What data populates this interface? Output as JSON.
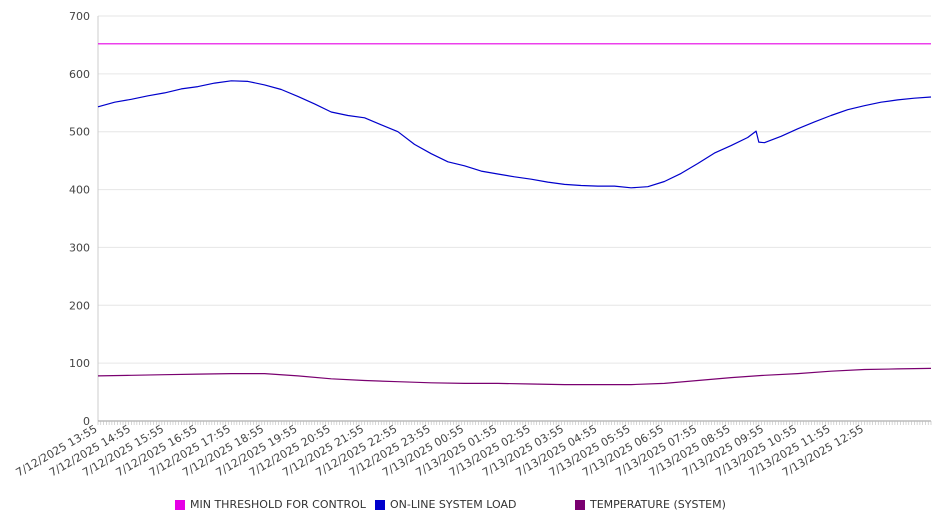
{
  "chart_data": {
    "type": "line",
    "title": "",
    "xlabel": "",
    "ylabel": "",
    "ylim": [
      0,
      700
    ],
    "y_ticks": [
      0,
      100,
      200,
      300,
      400,
      500,
      600,
      700
    ],
    "grid": true,
    "legend_position": "bottom",
    "x_start": "7/12/2025 13:55",
    "x_end": "7/13/2025 14:55",
    "x_tick_labels": [
      "7/12/2025 13:55",
      "7/12/2025 14:55",
      "7/12/2025 15:55",
      "7/12/2025 16:55",
      "7/12/2025 17:55",
      "7/12/2025 18:55",
      "7/12/2025 19:55",
      "7/12/2025 20:55",
      "7/12/2025 21:55",
      "7/12/2025 22:55",
      "7/12/2025 23:55",
      "7/13/2025 00:55",
      "7/13/2025 01:55",
      "7/13/2025 02:55",
      "7/13/2025 03:55",
      "7/13/2025 04:55",
      "7/13/2025 05:55",
      "7/13/2025 06:55",
      "7/13/2025 07:55",
      "7/13/2025 08:55",
      "7/13/2025 09:55",
      "7/13/2025 10:55",
      "7/13/2025 11:55",
      "7/13/2025 12:55"
    ],
    "series": [
      {
        "name": "MIN THRESHOLD FOR CONTROL",
        "color": "#e600e6",
        "points": [
          [
            "7/12/2025 13:55",
            652
          ],
          [
            "7/13/2025 14:55",
            652
          ]
        ]
      },
      {
        "name": "ON-LINE SYSTEM LOAD",
        "color": "#0000cc",
        "points": [
          [
            "7/12/2025 13:55",
            543
          ],
          [
            "7/12/2025 14:25",
            551
          ],
          [
            "7/12/2025 14:55",
            556
          ],
          [
            "7/12/2025 15:25",
            562
          ],
          [
            "7/12/2025 15:55",
            567
          ],
          [
            "7/12/2025 16:25",
            574
          ],
          [
            "7/12/2025 16:55",
            578
          ],
          [
            "7/12/2025 17:25",
            584
          ],
          [
            "7/12/2025 17:55",
            588
          ],
          [
            "7/12/2025 18:25",
            587
          ],
          [
            "7/12/2025 18:55",
            581
          ],
          [
            "7/12/2025 19:25",
            573
          ],
          [
            "7/12/2025 19:55",
            561
          ],
          [
            "7/12/2025 20:25",
            548
          ],
          [
            "7/12/2025 20:55",
            534
          ],
          [
            "7/12/2025 21:25",
            528
          ],
          [
            "7/12/2025 21:55",
            524
          ],
          [
            "7/12/2025 22:25",
            512
          ],
          [
            "7/12/2025 22:55",
            500
          ],
          [
            "7/12/2025 23:25",
            478
          ],
          [
            "7/12/2025 23:55",
            462
          ],
          [
            "7/13/2025 00:25",
            448
          ],
          [
            "7/13/2025 00:55",
            441
          ],
          [
            "7/13/2025 01:25",
            432
          ],
          [
            "7/13/2025 01:55",
            427
          ],
          [
            "7/13/2025 02:25",
            422
          ],
          [
            "7/13/2025 02:55",
            418
          ],
          [
            "7/13/2025 03:25",
            413
          ],
          [
            "7/13/2025 03:55",
            409
          ],
          [
            "7/13/2025 04:25",
            407
          ],
          [
            "7/13/2025 04:55",
            406
          ],
          [
            "7/13/2025 05:25",
            406
          ],
          [
            "7/13/2025 05:55",
            403
          ],
          [
            "7/13/2025 06:25",
            405
          ],
          [
            "7/13/2025 06:55",
            414
          ],
          [
            "7/13/2025 07:25",
            428
          ],
          [
            "7/13/2025 07:55",
            445
          ],
          [
            "7/13/2025 08:25",
            463
          ],
          [
            "7/13/2025 08:55",
            476
          ],
          [
            "7/13/2025 09:25",
            490
          ],
          [
            "7/13/2025 09:40",
            501
          ],
          [
            "7/13/2025 09:45",
            482
          ],
          [
            "7/13/2025 09:55",
            481
          ],
          [
            "7/13/2025 10:25",
            492
          ],
          [
            "7/13/2025 10:55",
            505
          ],
          [
            "7/13/2025 11:25",
            517
          ],
          [
            "7/13/2025 11:55",
            528
          ],
          [
            "7/13/2025 12:25",
            538
          ],
          [
            "7/13/2025 12:55",
            545
          ],
          [
            "7/13/2025 13:25",
            551
          ],
          [
            "7/13/2025 13:55",
            555
          ],
          [
            "7/13/2025 14:25",
            558
          ],
          [
            "7/13/2025 14:55",
            560
          ]
        ]
      },
      {
        "name": "TEMPERATURE (SYSTEM)",
        "color": "#7a0070",
        "points": [
          [
            "7/12/2025 13:55",
            78
          ],
          [
            "7/12/2025 14:55",
            79
          ],
          [
            "7/12/2025 15:55",
            80
          ],
          [
            "7/12/2025 16:55",
            81
          ],
          [
            "7/12/2025 17:55",
            82
          ],
          [
            "7/12/2025 18:55",
            82
          ],
          [
            "7/12/2025 19:55",
            78
          ],
          [
            "7/12/2025 20:55",
            73
          ],
          [
            "7/12/2025 21:55",
            70
          ],
          [
            "7/12/2025 22:55",
            68
          ],
          [
            "7/12/2025 23:55",
            66
          ],
          [
            "7/13/2025 00:55",
            65
          ],
          [
            "7/13/2025 01:55",
            65
          ],
          [
            "7/13/2025 02:55",
            64
          ],
          [
            "7/13/2025 03:55",
            63
          ],
          [
            "7/13/2025 04:55",
            63
          ],
          [
            "7/13/2025 05:55",
            63
          ],
          [
            "7/13/2025 06:55",
            65
          ],
          [
            "7/13/2025 07:55",
            70
          ],
          [
            "7/13/2025 08:55",
            75
          ],
          [
            "7/13/2025 09:55",
            79
          ],
          [
            "7/13/2025 10:55",
            82
          ],
          [
            "7/13/2025 11:55",
            86
          ],
          [
            "7/13/2025 12:55",
            89
          ],
          [
            "7/13/2025 13:55",
            90
          ],
          [
            "7/13/2025 14:55",
            91
          ]
        ]
      }
    ]
  }
}
